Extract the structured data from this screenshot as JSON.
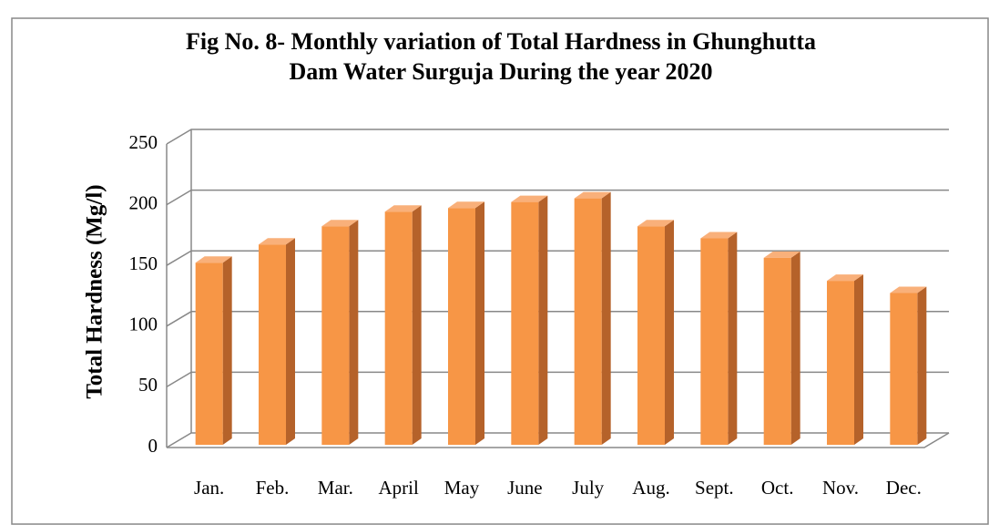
{
  "chart_data": {
    "type": "bar",
    "title": [
      "Fig No. 8- Monthly variation of Total Hardness in Ghunghutta",
      "Dam Water Surguja During the year 2020"
    ],
    "ylabel": "Total Hardness (Mg/l)",
    "categories": [
      "Jan.",
      "Feb.",
      "Mar.",
      "April",
      "May",
      "June",
      "July",
      "Aug.",
      "Sept.",
      "Oct.",
      "Nov.",
      "Dec."
    ],
    "values": [
      150,
      165,
      180,
      192,
      195,
      200,
      203,
      180,
      170,
      154,
      135,
      125
    ],
    "color": "#f79646",
    "ylim": [
      0,
      250
    ],
    "yticks": [
      0,
      50,
      100,
      150,
      200,
      250
    ],
    "grid": true
  }
}
